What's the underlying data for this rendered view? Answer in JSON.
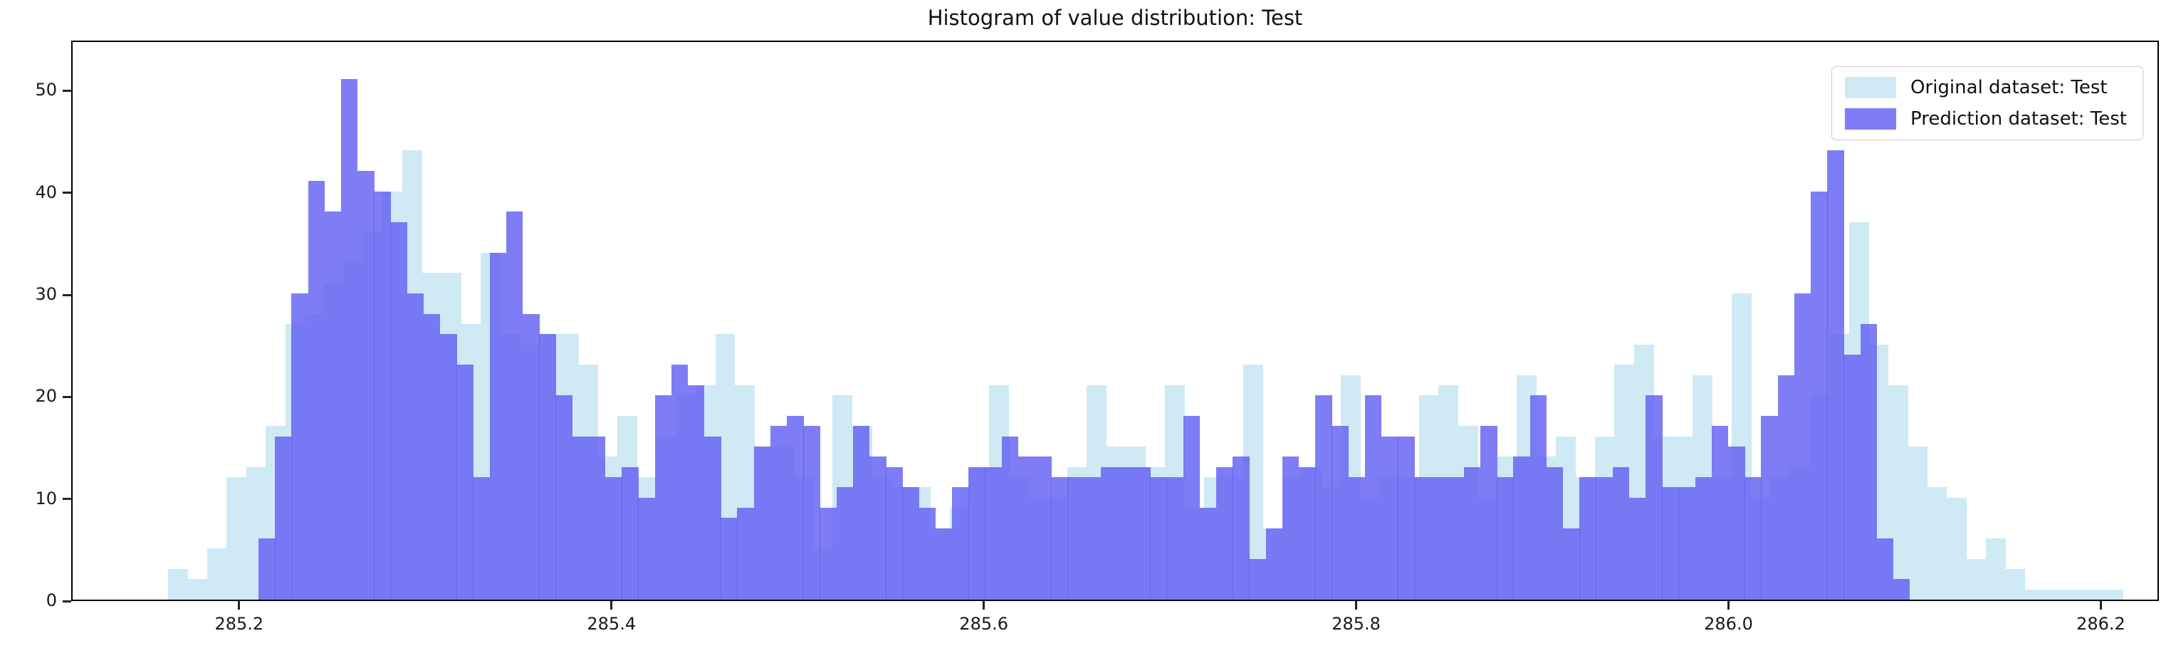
{
  "title": "Histogram of value distribution: Test",
  "legend": {
    "items": [
      {
        "label": "Original dataset: Test",
        "color": "#cfeaf5"
      },
      {
        "label": "Prediction dataset: Test",
        "color": "rgba(95,93,242,0.8)"
      }
    ],
    "position": "upper right"
  },
  "axes": {
    "xlim": [
      285.1098,
      286.2312
    ],
    "ylim": [
      0,
      54.91
    ],
    "x_tick_values": [
      285.2,
      285.4,
      285.6,
      285.8,
      286.0,
      286.2
    ],
    "x_tick_labels": [
      "285.2",
      "285.4",
      "285.6",
      "285.8",
      "286.0",
      "286.2"
    ],
    "y_tick_values": [
      0,
      10,
      20,
      30,
      40,
      50
    ],
    "y_tick_labels": [
      "0",
      "10",
      "20",
      "30",
      "40",
      "50"
    ],
    "grid": false
  },
  "chart_data": {
    "type": "bar",
    "subtype": "overlaid-histogram",
    "title": "Histogram of value distribution: Test",
    "xlabel": "",
    "ylabel": "",
    "legend_position": "upper right",
    "series": [
      {
        "name": "Original dataset: Test",
        "color": "#cfeaf5",
        "bin_start": 285.161,
        "bin_width": 0.0105,
        "counts": [
          3,
          2,
          5,
          12,
          13,
          17,
          27,
          28,
          31,
          33,
          36,
          40,
          44,
          32,
          32,
          27,
          34,
          26,
          25,
          26,
          26,
          23,
          14,
          18,
          12,
          16,
          20,
          21,
          26,
          21,
          15,
          15,
          12,
          5,
          20,
          17,
          12,
          11,
          11,
          7,
          9,
          13,
          21,
          12,
          10,
          10,
          13,
          21,
          15,
          15,
          13,
          21,
          9,
          12,
          12,
          23,
          7,
          12,
          13,
          11,
          22,
          10,
          12,
          12,
          20,
          21,
          17,
          10,
          14,
          22,
          14,
          16,
          12,
          16,
          23,
          25,
          16,
          16,
          22,
          12,
          30,
          10,
          12,
          13,
          20,
          26,
          37,
          25,
          21,
          15,
          11,
          10,
          4,
          6,
          3,
          1,
          1,
          1,
          1,
          1
        ]
      },
      {
        "name": "Prediction dataset: Test",
        "color": "rgba(95,93,242,0.8)",
        "bin_start": 285.2096,
        "bin_width": 0.00887,
        "counts": [
          6,
          16,
          30,
          41,
          38,
          51,
          42,
          40,
          37,
          30,
          28,
          26,
          23,
          12,
          34,
          38,
          28,
          26,
          20,
          16,
          16,
          12,
          13,
          10,
          20,
          23,
          21,
          16,
          8,
          9,
          15,
          17,
          18,
          17,
          9,
          11,
          17,
          14,
          13,
          11,
          9,
          7,
          11,
          13,
          13,
          16,
          14,
          14,
          12,
          12,
          12,
          13,
          13,
          13,
          12,
          12,
          18,
          9,
          13,
          14,
          4,
          7,
          14,
          13,
          20,
          17,
          12,
          20,
          16,
          16,
          12,
          12,
          12,
          13,
          17,
          12,
          14,
          20,
          13,
          7,
          12,
          12,
          13,
          10,
          20,
          11,
          11,
          12,
          17,
          15,
          12,
          18,
          22,
          30,
          40,
          44,
          24,
          27,
          6,
          2
        ]
      }
    ]
  }
}
